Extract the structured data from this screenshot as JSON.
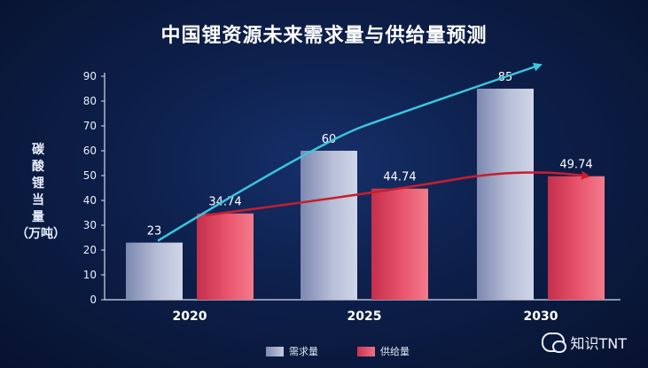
{
  "title": "中国锂资源未来需求量与供给量预测",
  "ylabel": "碳\n酸\n锂\n当\n量\n（万吨）",
  "watermark": "知识TNT",
  "colors": {
    "demand": "#9aa3c4",
    "supply": "#e8546a",
    "demand_arrow": "#3ac6e0",
    "supply_arrow": "#c81e2e"
  },
  "chart_data": {
    "type": "bar",
    "title": "中国锂资源未来需求量与供给量预测",
    "xlabel": "",
    "ylabel": "碳酸锂当量（万吨）",
    "categories": [
      "2020",
      "2025",
      "2030"
    ],
    "series": [
      {
        "name": "需求量",
        "values": [
          23,
          60,
          85
        ],
        "labels": [
          "23",
          "60",
          "85"
        ]
      },
      {
        "name": "供给量",
        "values": [
          34.74,
          44.74,
          49.74
        ],
        "labels": [
          "34.74",
          "44.74",
          "49.74"
        ]
      }
    ],
    "ylim": [
      0,
      90
    ],
    "yticks": [
      0,
      10,
      20,
      30,
      40,
      50,
      60,
      70,
      80,
      90
    ],
    "grid": false,
    "legend": "bottom"
  }
}
